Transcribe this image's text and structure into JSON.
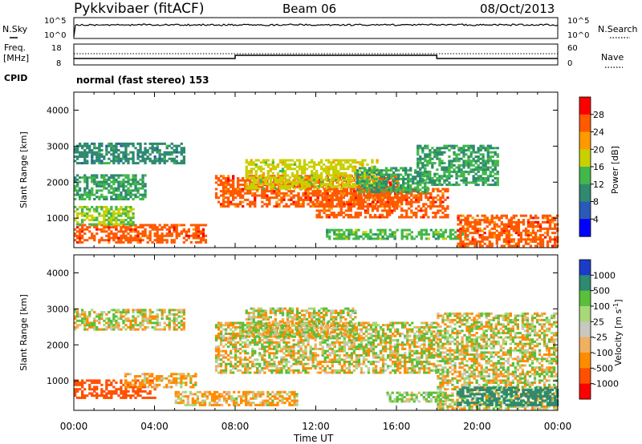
{
  "header": {
    "radar": "Pykkvibaer (fitACF)",
    "beam": "Beam 06",
    "date": "08/Oct/2013"
  },
  "sky_panel": {
    "left_label": "N.Sky",
    "right_label": "N.Search",
    "left_ticks": [
      "10^5",
      "10^0"
    ],
    "right_ticks": [
      "10^5",
      "10^0"
    ]
  },
  "freq_panel": {
    "left_label_line1": "Freq.",
    "left_label_line2": "[MHz]",
    "right_label": "Nave",
    "left_ticks": [
      "18",
      "8"
    ],
    "right_ticks": [
      "60",
      "0"
    ],
    "cpid_label": "CPID",
    "cpid_text": "normal (fast stereo) 153"
  },
  "chart_data": [
    {
      "type": "heatmap",
      "panel": "power",
      "ylabel": "Slant Range [km]",
      "yticks": [
        "4000",
        "3000",
        "2000",
        "1000"
      ],
      "ylim": [
        180,
        4500
      ],
      "xlim_hours": [
        0,
        24
      ],
      "colorbar": {
        "label": "Power [dB]",
        "ticks": [
          "28",
          "24",
          "20",
          "16",
          "12",
          "8",
          "4"
        ],
        "levels": [
          {
            "value": 30,
            "color": "#ff0000"
          },
          {
            "value": 26,
            "color": "#ff5a00"
          },
          {
            "value": 22,
            "color": "#ff9a00"
          },
          {
            "value": 18,
            "color": "#c8d000"
          },
          {
            "value": 14,
            "color": "#42b84a"
          },
          {
            "value": 10,
            "color": "#2e8a70"
          },
          {
            "value": 6,
            "color": "#2a5ab8"
          },
          {
            "value": 2,
            "color": "#0000ff"
          }
        ]
      },
      "echo_regions": [
        {
          "t0": 0.0,
          "t1": 5.5,
          "r0": 2500,
          "r1": 3100,
          "level": 10
        },
        {
          "t0": 0.0,
          "t1": 3.5,
          "r0": 1500,
          "r1": 2200,
          "level": 12
        },
        {
          "t0": 0.0,
          "t1": 6.5,
          "r0": 300,
          "r1": 800,
          "level": 26
        },
        {
          "t0": 0.0,
          "t1": 3.0,
          "r0": 800,
          "r1": 1300,
          "level": 16
        },
        {
          "t0": 7.0,
          "t1": 16.0,
          "r0": 1300,
          "r1": 2200,
          "level": 26
        },
        {
          "t0": 8.5,
          "t1": 15.0,
          "r0": 1800,
          "r1": 2600,
          "level": 18
        },
        {
          "t0": 12.0,
          "t1": 18.5,
          "r0": 1000,
          "r1": 1800,
          "level": 26
        },
        {
          "t0": 14.0,
          "t1": 17.5,
          "r0": 1700,
          "r1": 2400,
          "level": 12
        },
        {
          "t0": 12.5,
          "t1": 19.5,
          "r0": 400,
          "r1": 700,
          "level": 14
        },
        {
          "t0": 19.0,
          "t1": 24.0,
          "r0": 200,
          "r1": 1100,
          "level": 26
        },
        {
          "t0": 17.0,
          "t1": 21.0,
          "r0": 1900,
          "r1": 3000,
          "level": 12
        }
      ]
    },
    {
      "type": "heatmap",
      "panel": "velocity",
      "ylabel": "Slant Range [km]",
      "yticks": [
        "4000",
        "3000",
        "2000",
        "1000"
      ],
      "ylim": [
        180,
        4500
      ],
      "xlim_hours": [
        0,
        24
      ],
      "xticks": [
        "00:00",
        "04:00",
        "08:00",
        "12:00",
        "16:00",
        "20:00",
        "00:00"
      ],
      "xlabel": "Time UT",
      "colorbar": {
        "label": "Velocity [m s-1]",
        "ticks": [
          "1000",
          "500",
          "100",
          "25",
          "-25",
          "-100",
          "-500",
          "-1000"
        ],
        "levels": [
          {
            "value": 1000,
            "color": "#1a3cc8"
          },
          {
            "value": 500,
            "color": "#2e8a70"
          },
          {
            "value": 100,
            "color": "#5abf3a"
          },
          {
            "value": 25,
            "color": "#a8d878"
          },
          {
            "value": 0,
            "color": "#c8c8c0"
          },
          {
            "value": -25,
            "color": "#f0b060"
          },
          {
            "value": -100,
            "color": "#ff8c00"
          },
          {
            "value": -500,
            "color": "#ff5000"
          },
          {
            "value": -1000,
            "color": "#ff0000"
          }
        ]
      },
      "echo_regions": [
        {
          "t0": 0.0,
          "t1": 5.5,
          "r0": 2400,
          "r1": 3000,
          "level": 0
        },
        {
          "t0": 0.0,
          "t1": 4.0,
          "r0": 500,
          "r1": 1000,
          "level": -500
        },
        {
          "t0": 2.5,
          "t1": 6.0,
          "r0": 800,
          "r1": 1200,
          "level": -100
        },
        {
          "t0": 5.0,
          "t1": 11.0,
          "r0": 300,
          "r1": 700,
          "level": -100
        },
        {
          "t0": 7.0,
          "t1": 18.0,
          "r0": 1200,
          "r1": 2600,
          "level": 0
        },
        {
          "t0": 8.5,
          "t1": 14.0,
          "r0": 2200,
          "r1": 3000,
          "level": 0
        },
        {
          "t0": 15.5,
          "t1": 18.5,
          "r0": 400,
          "r1": 700,
          "level": 100
        },
        {
          "t0": 18.0,
          "t1": 24.0,
          "r0": 200,
          "r1": 2900,
          "level": 0
        },
        {
          "t0": 19.0,
          "t1": 24.0,
          "r0": 300,
          "r1": 800,
          "level": 500
        }
      ]
    }
  ]
}
